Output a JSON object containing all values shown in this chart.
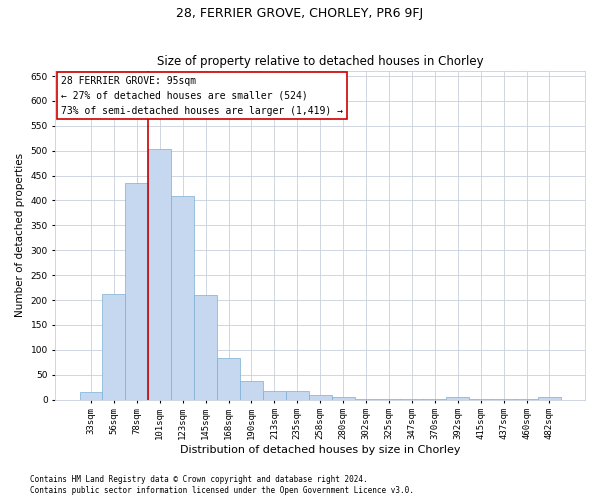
{
  "title": "28, FERRIER GROVE, CHORLEY, PR6 9FJ",
  "subtitle": "Size of property relative to detached houses in Chorley",
  "xlabel": "Distribution of detached houses by size in Chorley",
  "ylabel": "Number of detached properties",
  "bar_labels": [
    "33sqm",
    "56sqm",
    "78sqm",
    "101sqm",
    "123sqm",
    "145sqm",
    "168sqm",
    "190sqm",
    "213sqm",
    "235sqm",
    "258sqm",
    "280sqm",
    "302sqm",
    "325sqm",
    "347sqm",
    "370sqm",
    "392sqm",
    "415sqm",
    "437sqm",
    "460sqm",
    "482sqm"
  ],
  "bar_values": [
    15,
    213,
    435,
    503,
    408,
    210,
    83,
    38,
    18,
    18,
    10,
    6,
    2,
    2,
    2,
    2,
    5,
    2,
    2,
    2,
    5
  ],
  "bar_color": "#c5d8f0",
  "bar_edge_color": "#7aafd4",
  "vline_x_index": 3,
  "vline_color": "#cc0000",
  "annotation_text": "28 FERRIER GROVE: 95sqm\n← 27% of detached houses are smaller (524)\n73% of semi-detached houses are larger (1,419) →",
  "annotation_box_color": "#ffffff",
  "annotation_box_edge": "#cc0000",
  "ylim": [
    0,
    660
  ],
  "yticks": [
    0,
    50,
    100,
    150,
    200,
    250,
    300,
    350,
    400,
    450,
    500,
    550,
    600,
    650
  ],
  "footnote1": "Contains HM Land Registry data © Crown copyright and database right 2024.",
  "footnote2": "Contains public sector information licensed under the Open Government Licence v3.0.",
  "background_color": "#ffffff",
  "grid_color": "#c8d0dc",
  "title_fontsize": 9,
  "subtitle_fontsize": 8.5,
  "tick_fontsize": 6.5,
  "ylabel_fontsize": 7.5,
  "xlabel_fontsize": 8,
  "annotation_fontsize": 7,
  "footnote_fontsize": 5.5
}
